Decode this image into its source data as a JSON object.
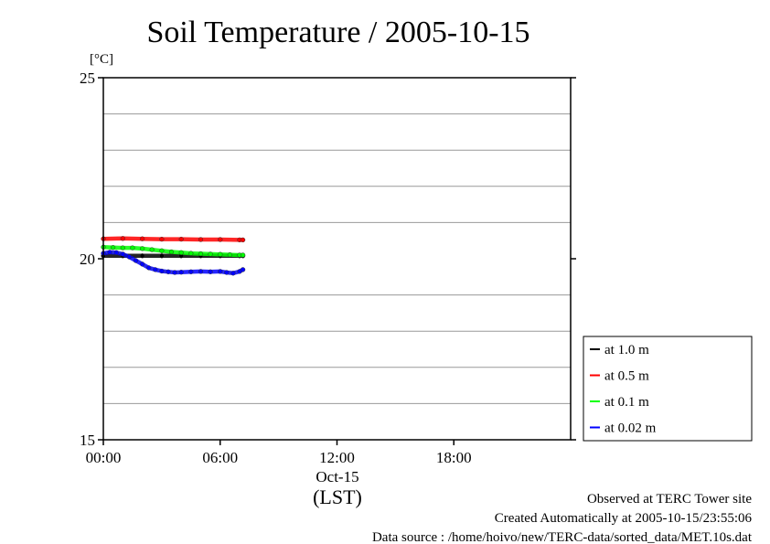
{
  "chart_data": {
    "type": "line",
    "title": "Soil Temperature / 2005-10-15",
    "ylabel": "[°C]",
    "xlabel": "(LST)",
    "x_date_label": "Oct-15",
    "ylim": [
      15,
      25
    ],
    "y_ticks": [
      15,
      20,
      25
    ],
    "y_gridlines": [
      16,
      17,
      18,
      19,
      21,
      22,
      23,
      24
    ],
    "xlim": [
      "00:00",
      "24:00"
    ],
    "x_ticks": [
      "00:00",
      "06:00",
      "12:00",
      "18:00"
    ],
    "grid": true,
    "legend_position": "right",
    "series": [
      {
        "name": "at 1.0 m",
        "color": "#000000",
        "x": [
          "00:00",
          "01:00",
          "02:00",
          "03:00",
          "04:00",
          "05:00",
          "06:00",
          "07:00",
          "07:10"
        ],
        "y": [
          20.08,
          20.08,
          20.08,
          20.08,
          20.08,
          20.08,
          20.08,
          20.08,
          20.08
        ]
      },
      {
        "name": "at 0.5 m",
        "color": "#ff0000",
        "x": [
          "00:00",
          "01:00",
          "02:00",
          "03:00",
          "04:00",
          "05:00",
          "06:00",
          "07:00",
          "07:10"
        ],
        "y": [
          20.55,
          20.56,
          20.55,
          20.54,
          20.54,
          20.53,
          20.53,
          20.52,
          20.52
        ]
      },
      {
        "name": "at 0.1 m",
        "color": "#00ff00",
        "x": [
          "00:00",
          "00:30",
          "01:00",
          "01:30",
          "02:00",
          "02:30",
          "03:00",
          "03:30",
          "04:00",
          "04:30",
          "05:00",
          "05:30",
          "06:00",
          "06:30",
          "07:00",
          "07:10"
        ],
        "y": [
          20.32,
          20.31,
          20.3,
          20.3,
          20.28,
          20.25,
          20.22,
          20.19,
          20.17,
          20.15,
          20.14,
          20.13,
          20.12,
          20.11,
          20.1,
          20.1
        ]
      },
      {
        "name": "at 0.02 m",
        "color": "#0000ff",
        "x": [
          "00:00",
          "00:20",
          "00:40",
          "01:00",
          "01:20",
          "01:40",
          "02:00",
          "02:20",
          "02:40",
          "03:00",
          "03:20",
          "03:40",
          "04:00",
          "04:30",
          "05:00",
          "05:30",
          "06:00",
          "06:20",
          "06:40",
          "07:00",
          "07:10"
        ],
        "y": [
          20.15,
          20.18,
          20.17,
          20.13,
          20.05,
          19.95,
          19.85,
          19.75,
          19.7,
          19.66,
          19.64,
          19.62,
          19.63,
          19.64,
          19.65,
          19.64,
          19.65,
          19.62,
          19.6,
          19.65,
          19.7
        ]
      }
    ]
  },
  "footer": {
    "observed": "Observed at TERC Tower site",
    "created": "Created Automatically at 2005-10-15/23:55:06",
    "source": "Data source : /home/hoivo/new/TERC-data/sorted_data/MET.10s.dat"
  }
}
